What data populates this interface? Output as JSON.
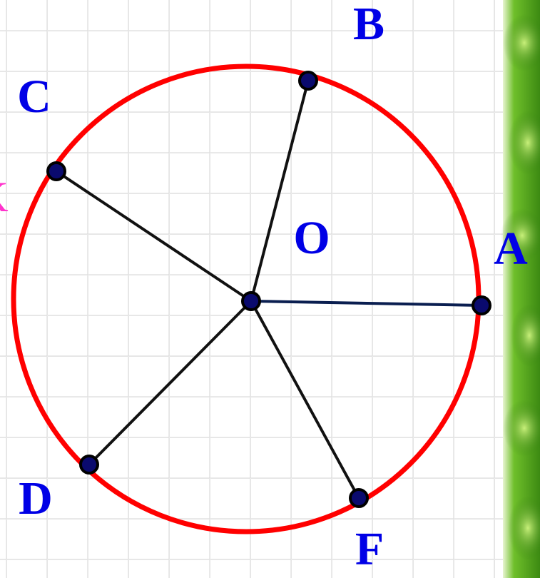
{
  "diagram": {
    "center": {
      "label": "O"
    },
    "points": [
      {
        "label": "A"
      },
      {
        "label": "B"
      },
      {
        "label": "C"
      },
      {
        "label": "D"
      },
      {
        "label": "F"
      }
    ],
    "edge_text": "K"
  }
}
